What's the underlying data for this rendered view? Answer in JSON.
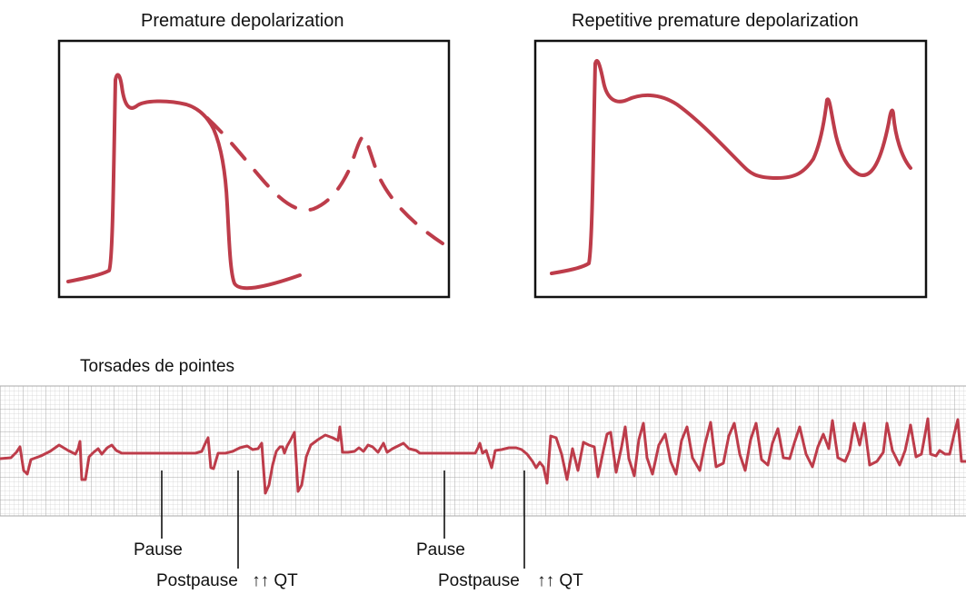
{
  "panels": {
    "left_title": "Premature depolarization",
    "right_title": "Repetitive premature depolarization"
  },
  "strip": {
    "title": "Torsades de pointes",
    "annotations": [
      {
        "id": "pause-1",
        "text": "Pause"
      },
      {
        "id": "postpause-1",
        "text": "Postpause",
        "arrows": "↑↑",
        "suffix": "QT"
      },
      {
        "id": "pause-2",
        "text": "Pause"
      },
      {
        "id": "postpause-2",
        "text": "Postpause",
        "arrows": "↑↑",
        "suffix": "QT"
      }
    ]
  },
  "colors": {
    "trace": "#bd3c4a",
    "grid_minor": "#d2d2d2",
    "grid_major": "#a9a9a9",
    "frame": "#111111"
  }
}
